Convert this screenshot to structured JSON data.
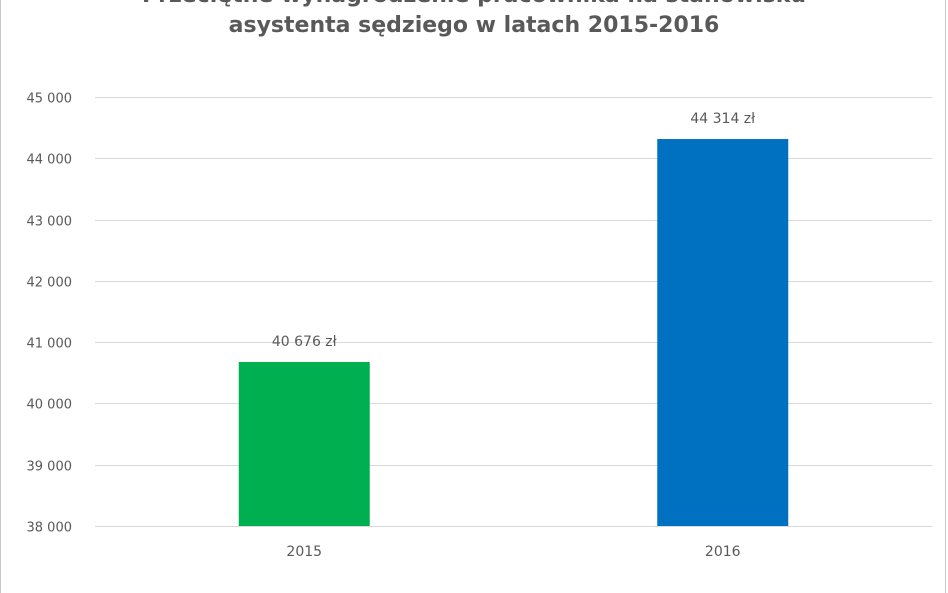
{
  "chart_data": {
    "type": "bar",
    "title_lines": [
      "Przeciętne wynagrodzenie pracownika na stanowisku",
      "asystenta sędziego w latach 2015-2016"
    ],
    "categories": [
      "2015",
      "2016"
    ],
    "values": [
      40676,
      44314
    ],
    "data_labels": [
      "40 676 zł",
      "44 314 zł"
    ],
    "bar_colors": [
      "#00b050",
      "#0070c0"
    ],
    "ylim": [
      38000,
      45000
    ],
    "y_ticks": [
      38000,
      39000,
      40000,
      41000,
      42000,
      43000,
      44000,
      45000
    ],
    "y_tick_labels": [
      "38 000",
      "39 000",
      "40 000",
      "41 000",
      "42 000",
      "43 000",
      "44 000",
      "45 000"
    ],
    "xlabel": "",
    "ylabel": "",
    "grid": true,
    "legend": "none"
  }
}
